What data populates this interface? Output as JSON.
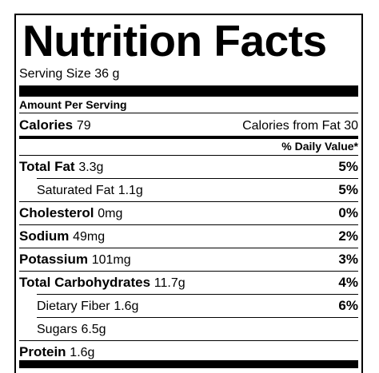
{
  "header": {
    "title": "Nutrition Facts",
    "serving_size": "Serving Size 36 g"
  },
  "amount_per_serving": "Amount Per Serving",
  "calories": {
    "label": "Calories",
    "value": "79",
    "from_fat": "Calories from Fat 30"
  },
  "daily_value_header": "% Daily Value*",
  "rows": [
    {
      "name": "Total Fat",
      "amount": "3.3g",
      "dv": "5%"
    },
    {
      "name": "Saturated Fat",
      "amount": "1.1g",
      "dv": "5%",
      "indent": true
    },
    {
      "name": "Cholesterol",
      "amount": "0mg",
      "dv": "0%"
    },
    {
      "name": "Sodium",
      "amount": "49mg",
      "dv": "2%"
    },
    {
      "name": "Potassium",
      "amount": "101mg",
      "dv": "3%"
    },
    {
      "name": "Total Carbohydrates",
      "amount": "11.7g",
      "dv": "4%"
    },
    {
      "name": "Dietary Fiber",
      "amount": "1.6g",
      "dv": "6%",
      "indent": true
    },
    {
      "name": "Sugars",
      "amount": "6.5g",
      "indent": true
    },
    {
      "name": "Protein",
      "amount": "1.6g"
    }
  ]
}
